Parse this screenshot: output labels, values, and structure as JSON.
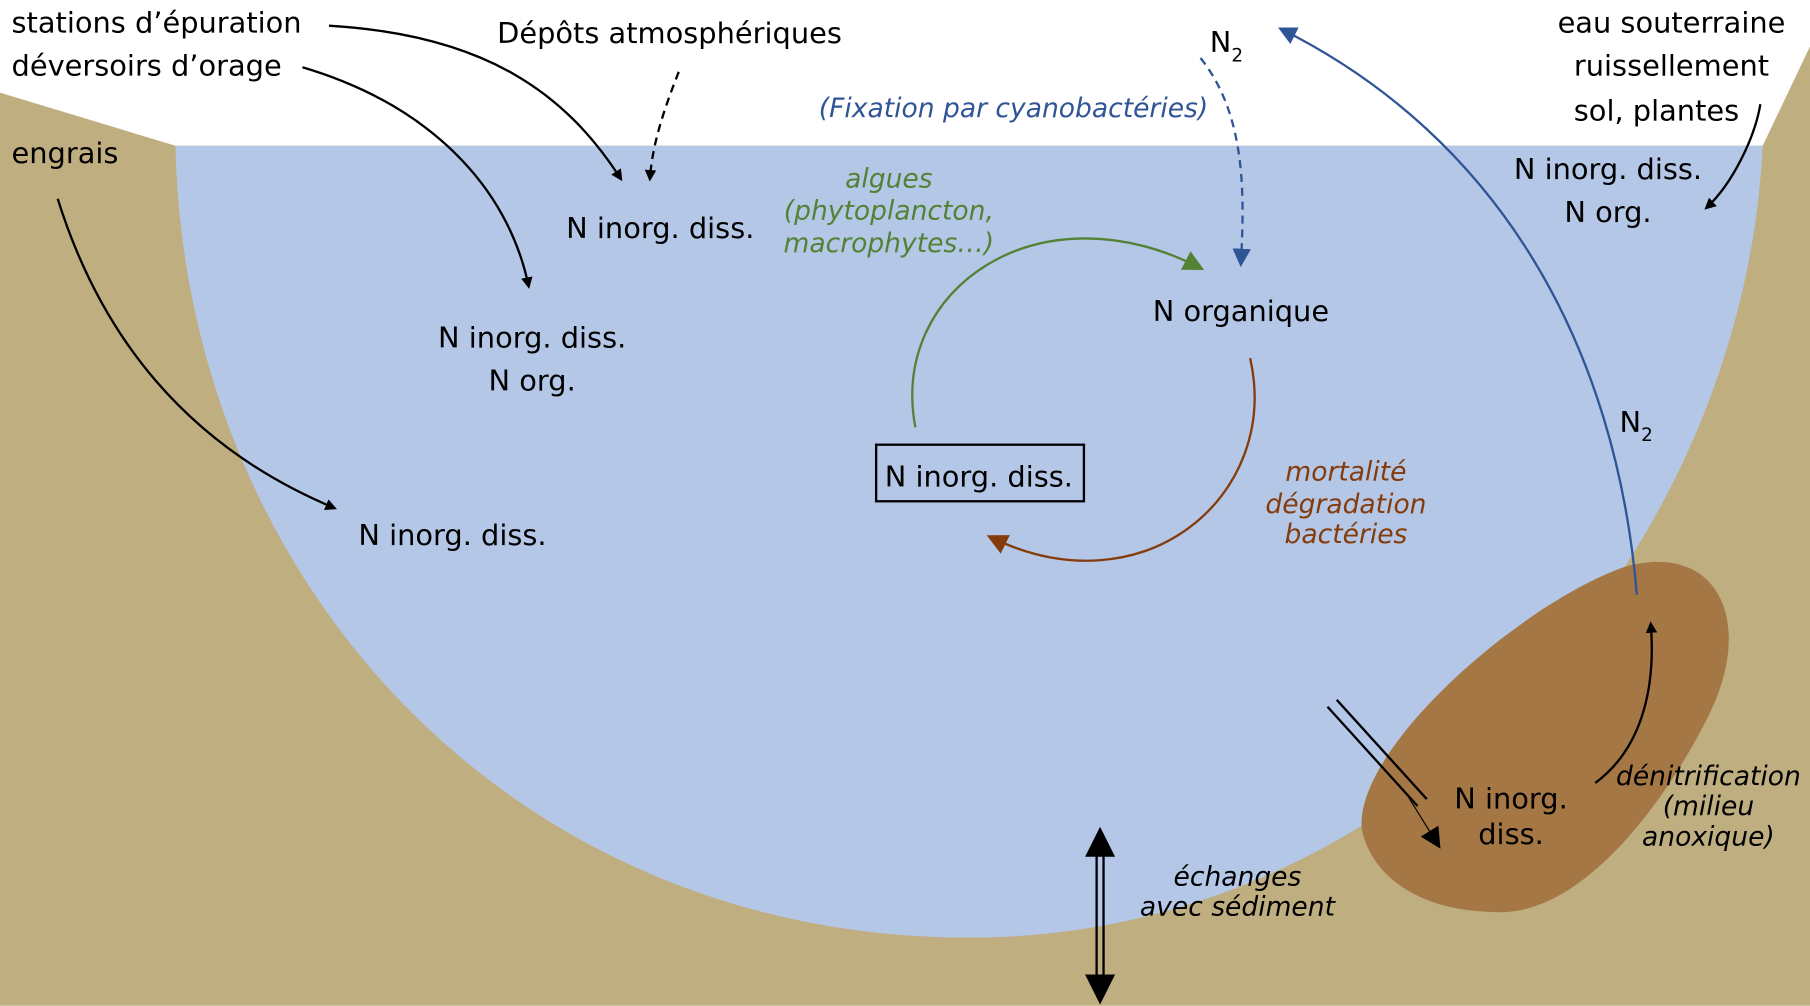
{
  "sources": {
    "stations": "stations d’épuration",
    "deversoirs": "déversoirs d’orage",
    "engrais": "engrais",
    "depots": "Dépôts atmosphériques",
    "right": [
      "eau souterraine",
      "ruissellement",
      "sol, plantes"
    ]
  },
  "pools": {
    "depots_pool": "N inorg. diss.",
    "deversoirs_pool": [
      "N inorg. diss.",
      "N org."
    ],
    "engrais_pool": "N inorg. diss.",
    "right_pool": [
      "N inorg. diss.",
      "N org."
    ],
    "cycle_inorg": "N inorg. diss.",
    "cycle_org": "N organique",
    "sediment_pool": [
      "N inorg.",
      "diss."
    ]
  },
  "n2_top": {
    "base": "N",
    "sub": "2"
  },
  "n2_right": {
    "base": "N",
    "sub": "2"
  },
  "processes": {
    "fixation": "(Fixation par cyanobactéries)",
    "algues": [
      "algues",
      "(phytoplancton,",
      "macrophytes…)"
    ],
    "mortalite": [
      "mortalité",
      "dégradation",
      "bactéries"
    ],
    "echanges": [
      "échanges",
      "avec sédiment"
    ],
    "denitrification": [
      "dénitrification",
      "(milieu",
      "anoxique)"
    ]
  }
}
